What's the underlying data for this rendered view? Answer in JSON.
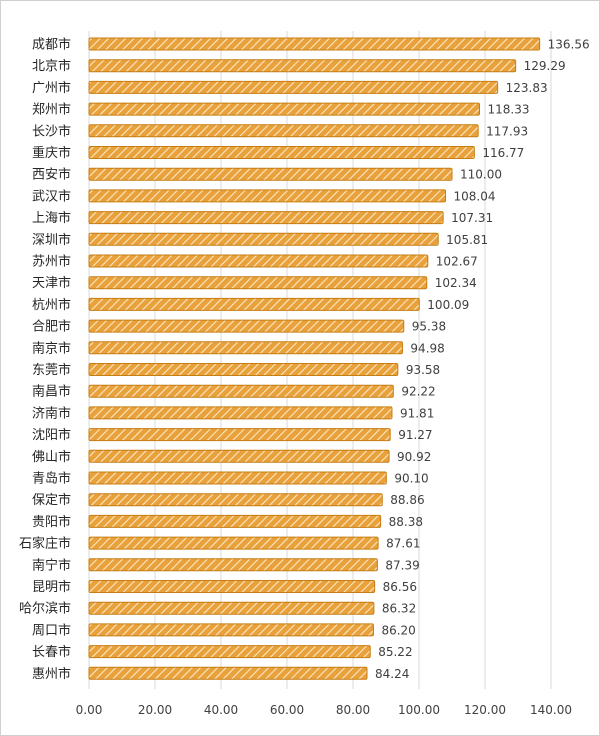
{
  "chart_data": {
    "type": "bar",
    "orientation": "horizontal",
    "categories": [
      "成都市",
      "北京市",
      "广州市",
      "郑州市",
      "长沙市",
      "重庆市",
      "西安市",
      "武汉市",
      "上海市",
      "深圳市",
      "苏州市",
      "天津市",
      "杭州市",
      "合肥市",
      "南京市",
      "东莞市",
      "南昌市",
      "济南市",
      "沈阳市",
      "佛山市",
      "青岛市",
      "保定市",
      "贵阳市",
      "石家庄市",
      "南宁市",
      "昆明市",
      "哈尔滨市",
      "周口市",
      "长春市",
      "惠州市"
    ],
    "values": [
      136.56,
      129.29,
      123.83,
      118.33,
      117.93,
      116.77,
      110.0,
      108.04,
      107.31,
      105.81,
      102.67,
      102.34,
      100.09,
      95.38,
      94.98,
      93.58,
      92.22,
      91.81,
      91.27,
      90.92,
      90.1,
      88.86,
      88.38,
      87.61,
      87.39,
      86.56,
      86.32,
      86.2,
      85.22,
      84.24
    ],
    "value_labels": [
      "136.56",
      "129.29",
      "123.83",
      "118.33",
      "117.93",
      "116.77",
      "110.00",
      "108.04",
      "107.31",
      "105.81",
      "102.67",
      "102.34",
      "100.09",
      "95.38",
      "94.98",
      "93.58",
      "92.22",
      "91.81",
      "91.27",
      "90.92",
      "90.10",
      "88.86",
      "88.38",
      "87.61",
      "87.39",
      "86.56",
      "86.32",
      "86.20",
      "85.22",
      "84.24"
    ],
    "xlim": [
      0,
      140
    ],
    "x_ticks": [
      "0.00",
      "20.00",
      "40.00",
      "60.00",
      "80.00",
      "100.00",
      "120.00",
      "140.00"
    ],
    "x_tick_values": [
      0,
      20,
      40,
      60,
      80,
      100,
      120,
      140
    ],
    "grid": "vertical",
    "bar_color": "#e9a13b",
    "bar_hatch_color": "#fbe7c4",
    "bar_edge_color": "#c67d12",
    "grid_color": "#d9d9d9",
    "title": "",
    "xlabel": "",
    "ylabel": ""
  }
}
